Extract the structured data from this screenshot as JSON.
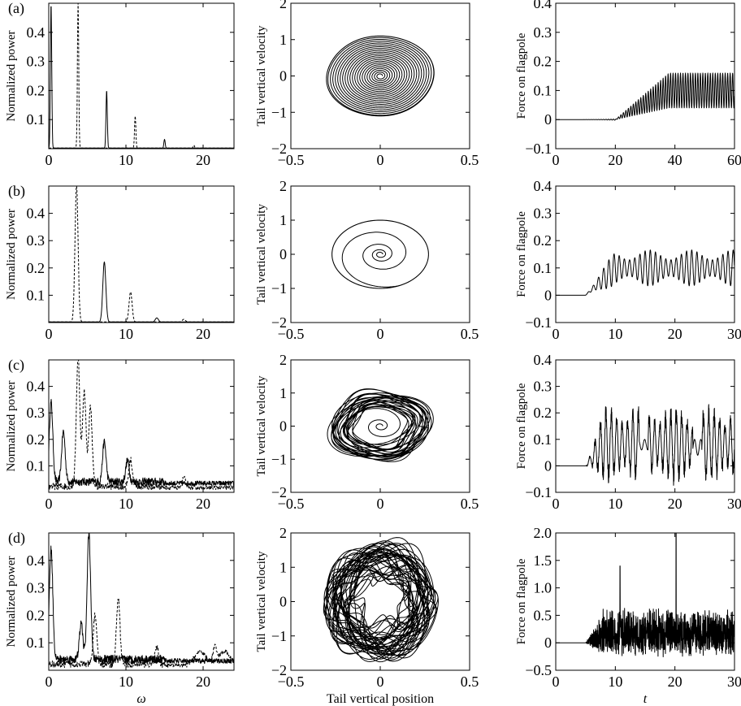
{
  "rows": [
    {
      "label": "(a)",
      "tlim": [
        0,
        60
      ],
      "force_ylim": [
        -0.1,
        0.4
      ],
      "force_yticks": [
        "−0.1",
        "0",
        "0.1",
        "0.2",
        "0.3",
        "0.4"
      ],
      "force_xticks": [
        "0",
        "20",
        "40",
        "60"
      ]
    },
    {
      "label": "(b)",
      "tlim": [
        0,
        30
      ],
      "force_ylim": [
        -0.1,
        0.4
      ],
      "force_yticks": [
        "−0.1",
        "0",
        "0.1",
        "0.2",
        "0.3",
        "0.4"
      ],
      "force_xticks": [
        "0",
        "10",
        "20",
        "30"
      ]
    },
    {
      "label": "(c)",
      "tlim": [
        0,
        30
      ],
      "force_ylim": [
        -0.1,
        0.4
      ],
      "force_yticks": [
        "−0.1",
        "0",
        "0.1",
        "0.2",
        "0.3",
        "0.4"
      ],
      "force_xticks": [
        "0",
        "10",
        "20",
        "30"
      ]
    },
    {
      "label": "(d)",
      "tlim": [
        0,
        30
      ],
      "force_ylim": [
        -0.5,
        2.0
      ],
      "force_yticks": [
        "−0.5",
        "0",
        "0.5",
        "1.0",
        "1.5",
        "2.0"
      ],
      "force_xticks": [
        "0",
        "10",
        "20",
        "30"
      ]
    }
  ],
  "columns": {
    "spectrum": {
      "ylabel": "Normalized power",
      "xlabel": "ω",
      "xticks": [
        "0",
        "10",
        "20"
      ],
      "yticks": [
        "0.1",
        "0.2",
        "0.3",
        "0.4"
      ]
    },
    "phase": {
      "ylabel": "Tail vertical velocity",
      "xlabel": "Tail vertical position",
      "xticks": [
        "−0.5",
        "0",
        "0.5"
      ],
      "yticks": [
        "−2",
        "−1",
        "0",
        "1",
        "2"
      ]
    },
    "force": {
      "ylabel": "Force on flagpole",
      "xlabel": "t"
    }
  },
  "chart_data": [
    {
      "panel": "a-spectrum",
      "type": "line",
      "xlim": [
        0,
        24
      ],
      "ylim": [
        0,
        0.5
      ],
      "ylabel": "Normalized power",
      "series": [
        {
          "style": "solid",
          "peaks": [
            [
              0.3,
              0.5
            ],
            [
              7.5,
              0.2
            ],
            [
              15,
              0.03
            ]
          ]
        },
        {
          "style": "dashed",
          "peaks": [
            [
              3.8,
              0.5
            ],
            [
              11.2,
              0.11
            ],
            [
              18.8,
              0.01
            ]
          ]
        }
      ]
    },
    {
      "panel": "a-phase",
      "type": "line",
      "xlim": [
        -0.5,
        0.5
      ],
      "ylim": [
        -2,
        2
      ],
      "ylabel": "Tail vertical velocity",
      "limit_cycle": {
        "x_amplitude": 0.3,
        "y_amplitude": 1.1
      }
    },
    {
      "panel": "a-force",
      "type": "line",
      "xlim": [
        0,
        60
      ],
      "ylim": [
        -0.1,
        0.4
      ],
      "ylabel": "Force on flagpole",
      "regime": {
        "onset_t": 20,
        "saturation_t": 38,
        "mean": 0.1,
        "amplitude": 0.06
      }
    },
    {
      "panel": "b-spectrum",
      "type": "line",
      "xlim": [
        0,
        24
      ],
      "ylim": [
        0,
        0.5
      ],
      "ylabel": "Normalized power",
      "series": [
        {
          "style": "solid",
          "peaks": [
            [
              7.2,
              0.22
            ],
            [
              14,
              0.015
            ]
          ]
        },
        {
          "style": "dashed",
          "peaks": [
            [
              3.6,
              0.5
            ],
            [
              10.6,
              0.11
            ],
            [
              17.5,
              0.01
            ]
          ]
        }
      ]
    },
    {
      "panel": "b-phase",
      "type": "line",
      "xlim": [
        -0.5,
        0.5
      ],
      "ylim": [
        -2,
        2
      ],
      "ylabel": "Tail vertical velocity",
      "limit_cycle": {
        "x_amplitude": 0.27,
        "y_amplitude": 1.0
      }
    },
    {
      "panel": "b-force",
      "type": "line",
      "xlim": [
        0,
        30
      ],
      "ylim": [
        -0.1,
        0.4
      ],
      "ylabel": "Force on flagpole",
      "regime": {
        "onset_t": 5,
        "saturation_t": 10,
        "mean": 0.1,
        "amplitude": 0.06
      }
    },
    {
      "panel": "c-spectrum",
      "type": "line",
      "xlim": [
        0,
        24
      ],
      "ylim": [
        0,
        0.5
      ],
      "ylabel": "Normalized power",
      "series": [
        {
          "style": "solid",
          "peaks": [
            [
              0.3,
              0.3
            ],
            [
              1.9,
              0.19
            ],
            [
              7.2,
              0.15
            ],
            [
              10.2,
              0.08
            ]
          ]
        },
        {
          "style": "dashed",
          "peaks": [
            [
              3.8,
              0.49
            ],
            [
              4.6,
              0.36
            ],
            [
              5.4,
              0.3
            ],
            [
              10.6,
              0.1
            ],
            [
              17.5,
              0.04
            ]
          ]
        }
      ]
    },
    {
      "panel": "c-phase",
      "type": "line",
      "xlim": [
        -0.5,
        0.5
      ],
      "ylim": [
        -2,
        2
      ],
      "ylabel": "Tail vertical velocity",
      "limit_cycle": {
        "x_amplitude": 0.27,
        "y_amplitude": 1.0
      }
    },
    {
      "panel": "c-force",
      "type": "line",
      "xlim": [
        0,
        30
      ],
      "ylim": [
        -0.1,
        0.4
      ],
      "ylabel": "Force on flagpole",
      "regime": {
        "onset_t": 5,
        "saturation_t": 8,
        "mean": 0.08,
        "amplitude": 0.12
      }
    },
    {
      "panel": "d-spectrum",
      "type": "line",
      "xlim": [
        0,
        24
      ],
      "ylim": [
        0,
        0.5
      ],
      "ylabel": "Normalized power",
      "series": [
        {
          "style": "solid",
          "peaks": [
            [
              0.3,
              0.4
            ],
            [
              5.2,
              0.46
            ],
            [
              4.2,
              0.13
            ]
          ]
        },
        {
          "style": "dashed",
          "peaks": [
            [
              9.0,
              0.24
            ],
            [
              6.0,
              0.18
            ],
            [
              14,
              0.06
            ],
            [
              21.5,
              0.06
            ]
          ]
        }
      ]
    },
    {
      "panel": "d-phase",
      "type": "line",
      "xlim": [
        -0.5,
        0.5
      ],
      "ylim": [
        -2,
        2
      ],
      "ylabel": "Tail vertical velocity",
      "limit_cycle": {
        "x_amplitude": 0.3,
        "y_amplitude": 1.6
      }
    },
    {
      "panel": "d-force",
      "type": "line",
      "xlim": [
        0,
        30
      ],
      "ylim": [
        -0.5,
        2.0
      ],
      "ylabel": "Force on flagpole",
      "regime": {
        "onset_t": 5,
        "saturation_t": 8,
        "mean": 0.1,
        "amplitude": 0.5
      }
    }
  ]
}
